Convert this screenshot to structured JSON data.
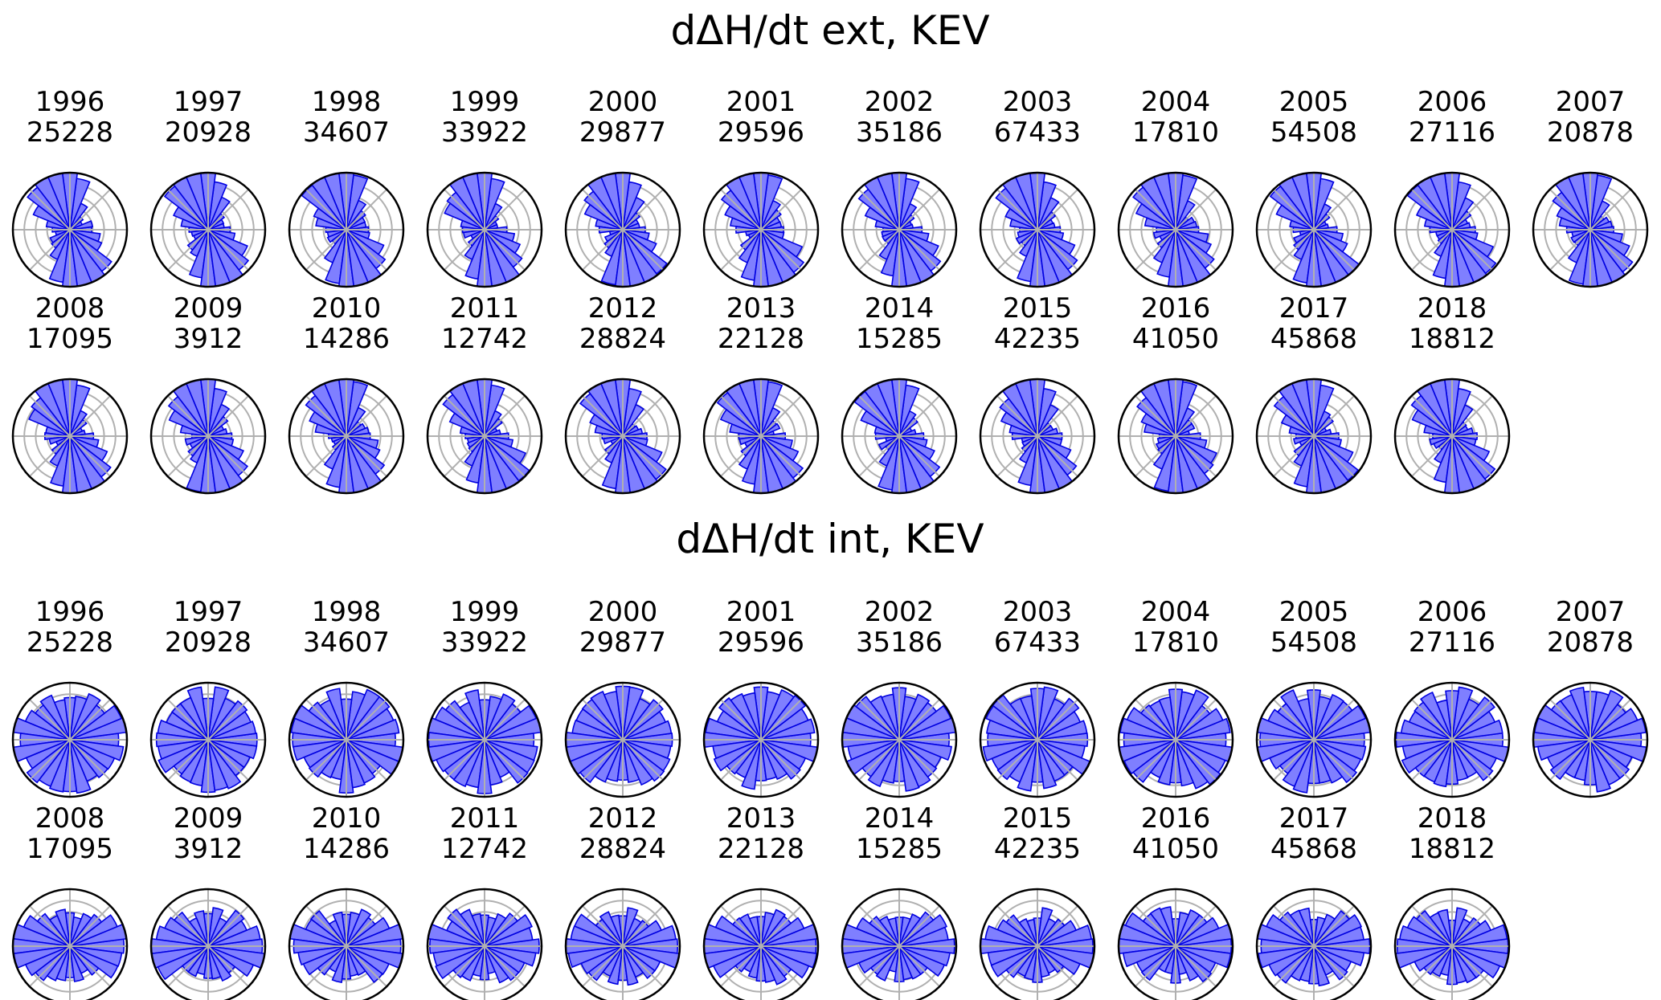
{
  "chart_data": [
    {
      "type": "polar-bar",
      "title": "dΔH/dt ext, KEV",
      "pattern": "ext",
      "subplots": [
        {
          "year": "1996",
          "count": "25228"
        },
        {
          "year": "1997",
          "count": "20928"
        },
        {
          "year": "1998",
          "count": "34607"
        },
        {
          "year": "1999",
          "count": "33922"
        },
        {
          "year": "2000",
          "count": "29877"
        },
        {
          "year": "2001",
          "count": "29596"
        },
        {
          "year": "2002",
          "count": "35186"
        },
        {
          "year": "2003",
          "count": "67433"
        },
        {
          "year": "2004",
          "count": "17810"
        },
        {
          "year": "2005",
          "count": "54508"
        },
        {
          "year": "2006",
          "count": "27116"
        },
        {
          "year": "2007",
          "count": "20878"
        },
        {
          "year": "2008",
          "count": "17095"
        },
        {
          "year": "2009",
          "count": "3912"
        },
        {
          "year": "2010",
          "count": "14286"
        },
        {
          "year": "2011",
          "count": "12742"
        },
        {
          "year": "2012",
          "count": "28824"
        },
        {
          "year": "2013",
          "count": "22128"
        },
        {
          "year": "2014",
          "count": "15285"
        },
        {
          "year": "2015",
          "count": "42235"
        },
        {
          "year": "2016",
          "count": "41050"
        },
        {
          "year": "2017",
          "count": "45868"
        },
        {
          "year": "2018",
          "count": "18812"
        }
      ]
    },
    {
      "type": "polar-bar",
      "title": "dΔH/dt int, KEV",
      "pattern": "int",
      "subplots": [
        {
          "year": "1996",
          "count": "25228"
        },
        {
          "year": "1997",
          "count": "20928"
        },
        {
          "year": "1998",
          "count": "34607"
        },
        {
          "year": "1999",
          "count": "33922"
        },
        {
          "year": "2000",
          "count": "29877"
        },
        {
          "year": "2001",
          "count": "29596"
        },
        {
          "year": "2002",
          "count": "35186"
        },
        {
          "year": "2003",
          "count": "67433"
        },
        {
          "year": "2004",
          "count": "17810"
        },
        {
          "year": "2005",
          "count": "54508"
        },
        {
          "year": "2006",
          "count": "27116"
        },
        {
          "year": "2007",
          "count": "20878"
        },
        {
          "year": "2008",
          "count": "17095"
        },
        {
          "year": "2009",
          "count": "3912"
        },
        {
          "year": "2010",
          "count": "14286"
        },
        {
          "year": "2011",
          "count": "12742"
        },
        {
          "year": "2012",
          "count": "28824"
        },
        {
          "year": "2013",
          "count": "22128"
        },
        {
          "year": "2014",
          "count": "15285"
        },
        {
          "year": "2015",
          "count": "42235"
        },
        {
          "year": "2016",
          "count": "41050"
        },
        {
          "year": "2017",
          "count": "45868"
        },
        {
          "year": "2018",
          "count": "18812"
        }
      ]
    }
  ],
  "colors": {
    "bar_fill": "#7f7fff",
    "bar_edge": "#0000e0",
    "grid": "#b0b0b0",
    "axis": "#000000"
  }
}
